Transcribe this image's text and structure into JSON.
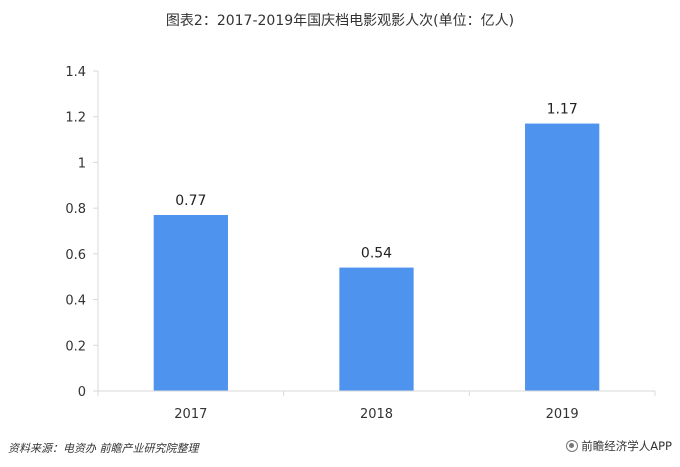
{
  "title": "图表2：2017-2019年国庆档电影观影人次(单位：亿人)",
  "footer": {
    "source": "资料来源：电资办 前瞻产业研究院整理",
    "brand": "前瞻经济学人APP"
  },
  "colors": {
    "bar": "#4e93ee",
    "axis": "#d9d9d9",
    "text": "#333333"
  },
  "chart_data": {
    "type": "bar",
    "title": "2017-2019年国庆档电影观影人次",
    "categories": [
      "2017",
      "2018",
      "2019"
    ],
    "values": [
      0.77,
      0.54,
      1.17
    ],
    "value_labels": [
      "0.77",
      "0.54",
      "1.17"
    ],
    "ylim": [
      0,
      1.4
    ],
    "yticks": [
      0,
      0.2,
      0.4,
      0.6,
      0.8,
      1,
      1.2,
      1.4
    ],
    "ytick_labels": [
      "0",
      "0.2",
      "0.4",
      "0.6",
      "0.8",
      "1",
      "1.2",
      "1.4"
    ],
    "xlabel": "",
    "ylabel": "",
    "grid": false,
    "legend": "none"
  }
}
